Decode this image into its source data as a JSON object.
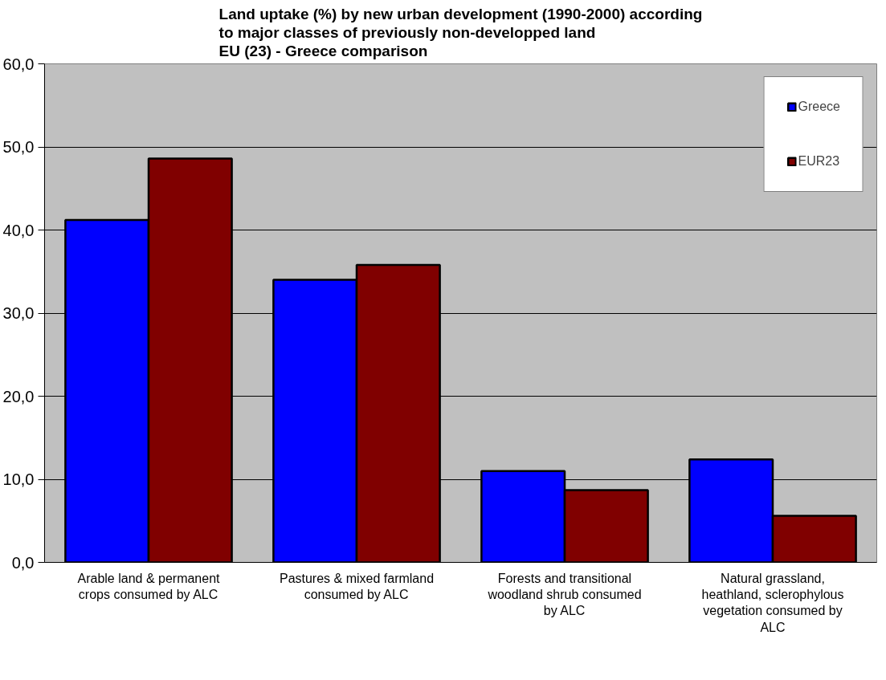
{
  "chart_data": {
    "type": "bar",
    "title": "Land uptake (%) by new urban development (1990-2000) according\nto major classes of previously non-developped land\nEU (23) - Greece comparison",
    "categories": [
      "Arable land & permanent crops consumed by ALC",
      "Pastures & mixed farmland consumed by ALC",
      "Forests and transitional woodland shrub consumed by ALC",
      "Natural grassland, heathland, sclerophylous vegetation consumed by ALC"
    ],
    "series": [
      {
        "name": "Greece",
        "color": "#0000ff",
        "values": [
          41.2,
          34.0,
          11.0,
          12.4
        ]
      },
      {
        "name": "EUR23",
        "color": "#800000",
        "values": [
          48.6,
          35.8,
          8.7,
          5.6
        ]
      }
    ],
    "ylim": [
      0,
      60
    ],
    "yticks": [
      {
        "value": 0,
        "label": "0,0"
      },
      {
        "value": 10,
        "label": "10,0"
      },
      {
        "value": 20,
        "label": "20,0"
      },
      {
        "value": 30,
        "label": "30,0"
      },
      {
        "value": 40,
        "label": "40,0"
      },
      {
        "value": 50,
        "label": "50,0"
      },
      {
        "value": 60,
        "label": "60,0"
      }
    ],
    "grid": "y",
    "legend": "top right"
  }
}
